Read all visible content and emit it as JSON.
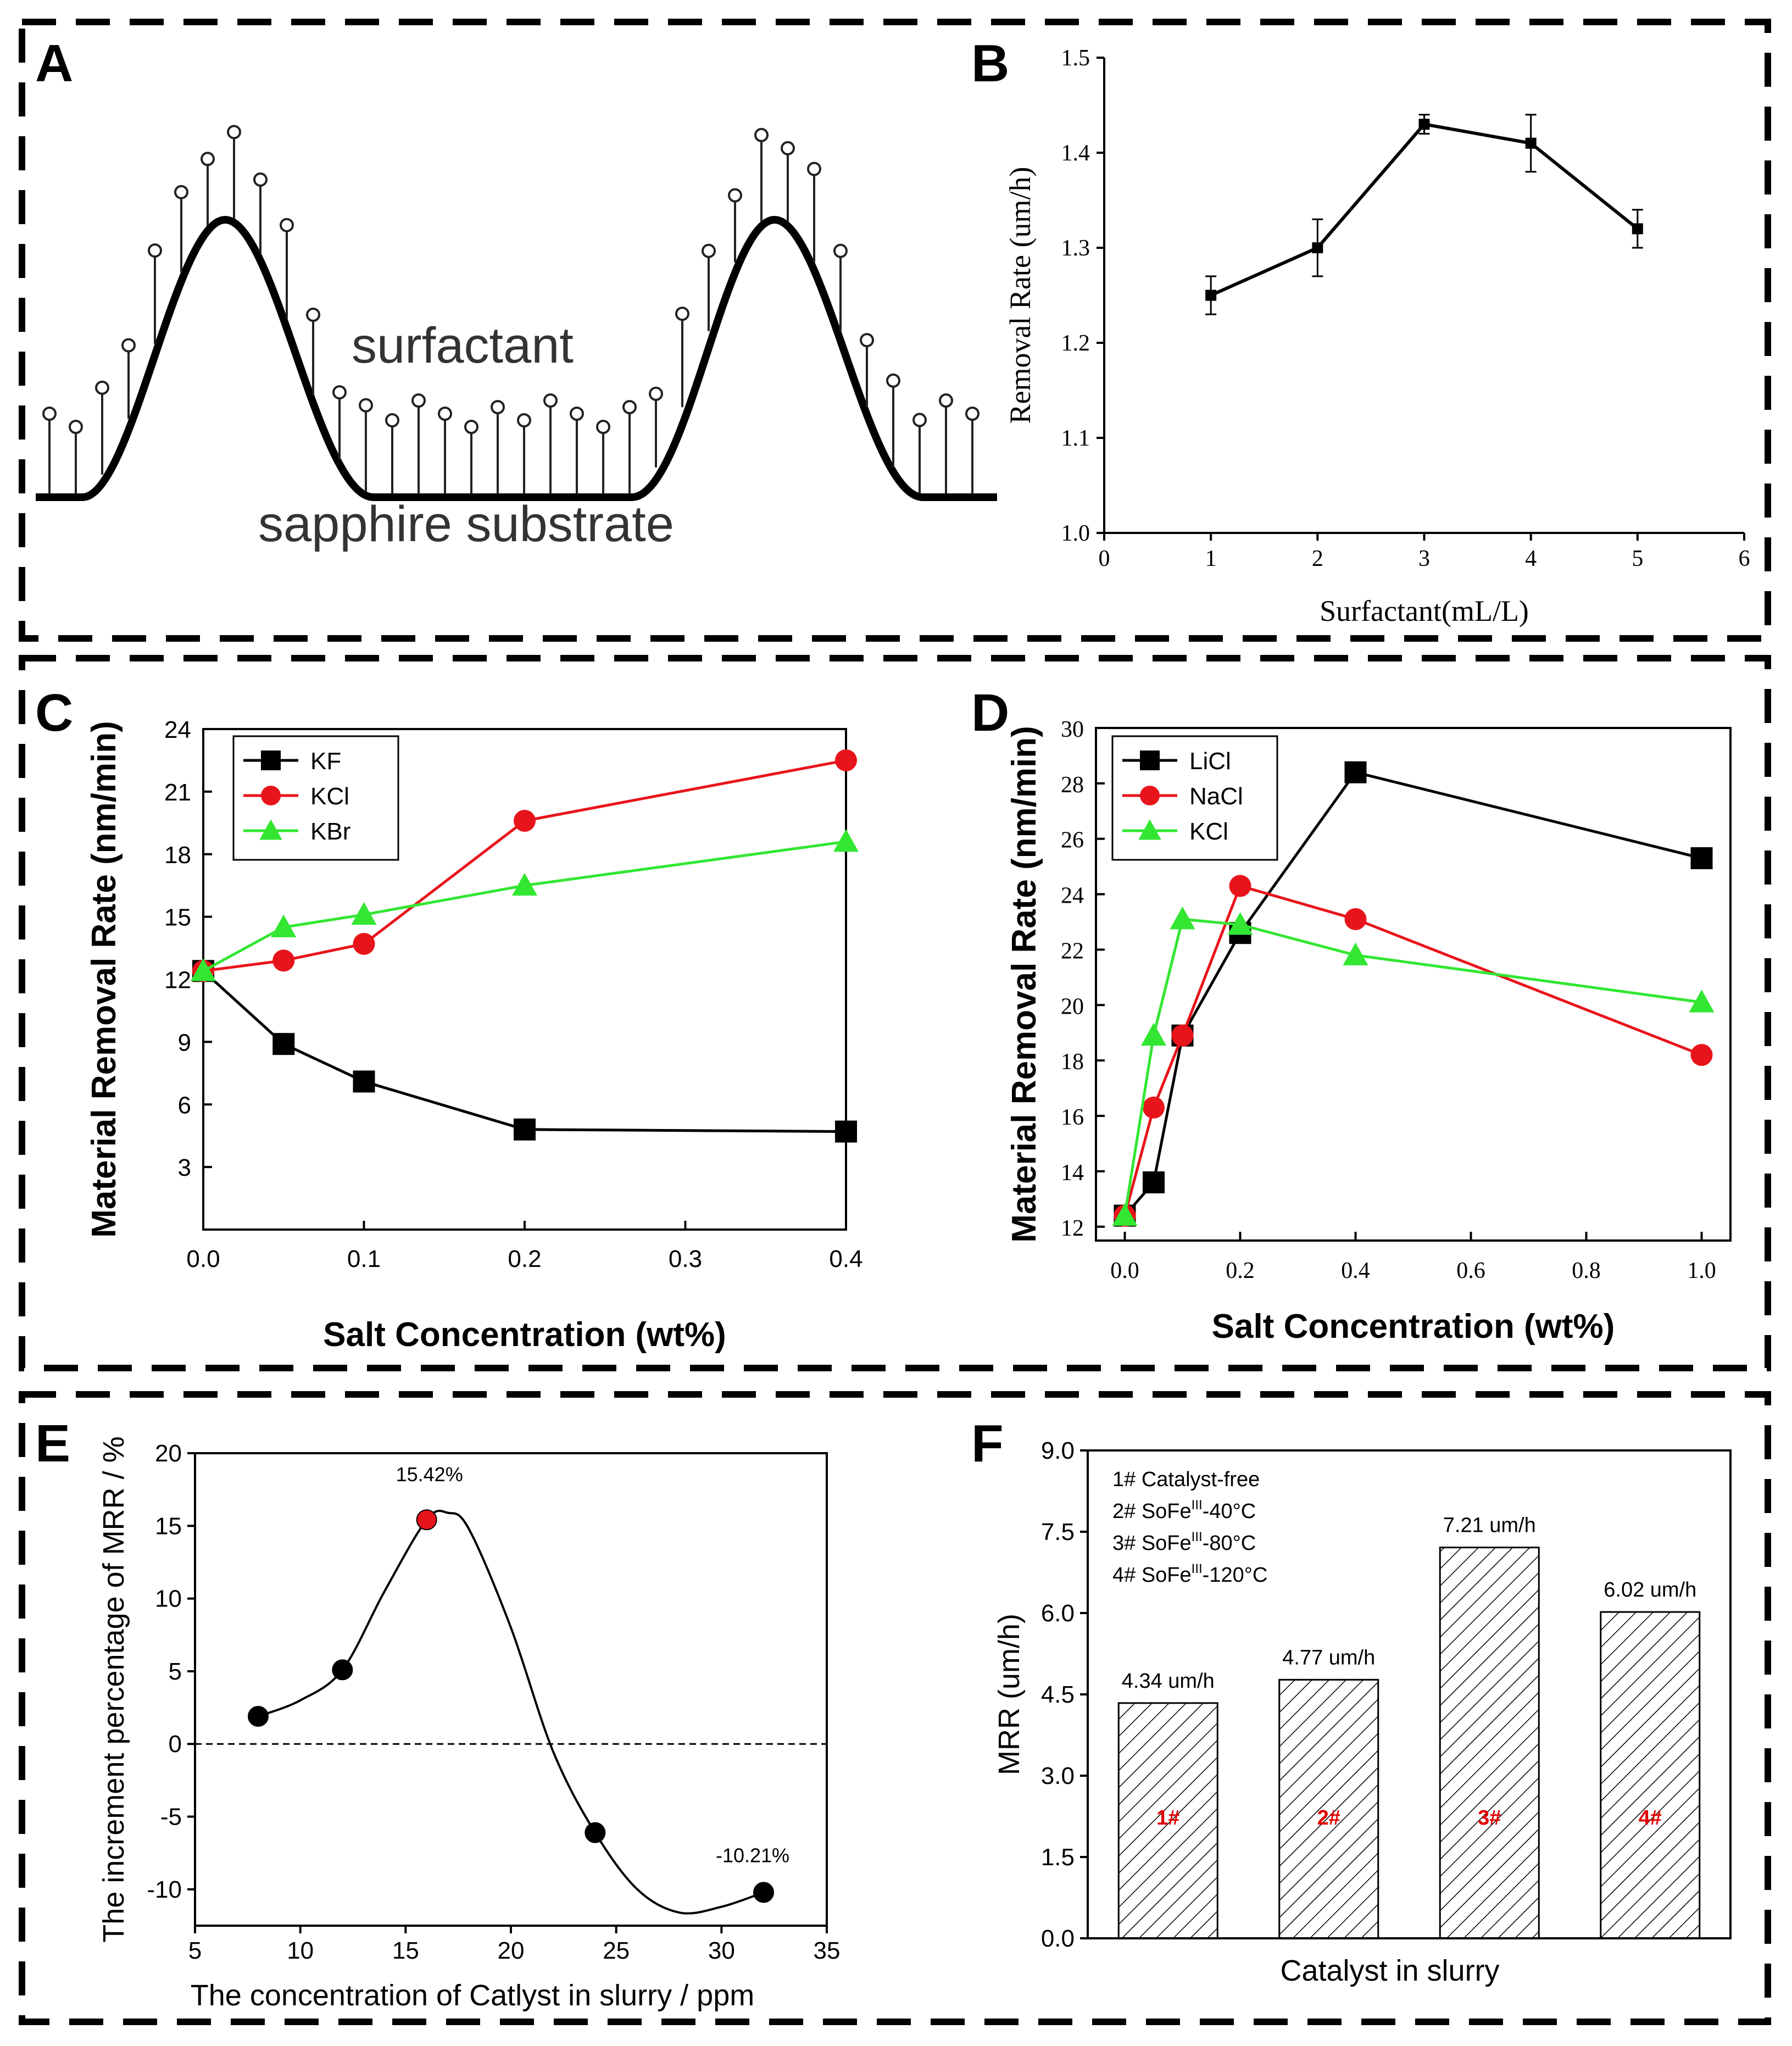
{
  "panels": {
    "A": {
      "letter": "A",
      "surfactant_label": "surfactant",
      "substrate_label": "sapphire substrate"
    },
    "B": {
      "letter": "B"
    },
    "C": {
      "letter": "C"
    },
    "D": {
      "letter": "D"
    },
    "E": {
      "letter": "E"
    },
    "F": {
      "letter": "F"
    }
  },
  "colors": {
    "black": "#000000",
    "red": "#e8141b",
    "green": "#32e632",
    "redlabel": "#e00000"
  },
  "chart_data": [
    {
      "id": "B",
      "type": "line",
      "title": "",
      "xlabel": "Surfactant(mL/L)",
      "ylabel": "Removal Rate (um/h)",
      "xlim": [
        0,
        6
      ],
      "ylim": [
        1.0,
        1.5
      ],
      "xticks": [
        "0",
        "1",
        "2",
        "3",
        "4",
        "5",
        "6"
      ],
      "yticks": [
        "1.0",
        "1.1",
        "1.2",
        "1.3",
        "1.4",
        "1.5"
      ],
      "series": [
        {
          "x": [
            1,
            2,
            3,
            4,
            5
          ],
          "y": [
            1.25,
            1.3,
            1.43,
            1.41,
            1.32
          ],
          "yerr": [
            0.02,
            0.03,
            0.01,
            0.03,
            0.02
          ],
          "marker": "square",
          "color": "#000000"
        }
      ]
    },
    {
      "id": "C",
      "type": "line",
      "title": "",
      "xlabel": "Salt Concentration (wt%)",
      "ylabel": "Material Removal Rate (nm/min)",
      "xlim": [
        0,
        0.4
      ],
      "ylim": [
        0,
        24
      ],
      "xticks": [
        "0.0",
        "0.1",
        "0.2",
        "0.3",
        "0.4"
      ],
      "yticks": [
        "3",
        "6",
        "9",
        "12",
        "15",
        "18",
        "21",
        "24"
      ],
      "legend_position": "top-left",
      "series": [
        {
          "name": "KF",
          "color": "#000000",
          "marker": "square",
          "x": [
            0,
            0.05,
            0.1,
            0.2,
            0.4
          ],
          "y": [
            12.4,
            8.9,
            7.1,
            4.8,
            4.7
          ]
        },
        {
          "name": "KCl",
          "color": "#e8141b",
          "marker": "circle",
          "x": [
            0,
            0.05,
            0.1,
            0.2,
            0.4
          ],
          "y": [
            12.4,
            12.9,
            13.7,
            19.6,
            22.5
          ]
        },
        {
          "name": "KBr",
          "color": "#32e632",
          "marker": "triangle",
          "x": [
            0,
            0.05,
            0.1,
            0.2,
            0.4
          ],
          "y": [
            12.4,
            14.5,
            15.1,
            16.5,
            18.6
          ]
        }
      ]
    },
    {
      "id": "D",
      "type": "line",
      "title": "",
      "xlabel": "Salt Concentration (wt%)",
      "ylabel": "Material Removal Rate (nm/min)",
      "xlim": [
        -0.05,
        1.05
      ],
      "ylim": [
        11.5,
        30
      ],
      "xticks": [
        "0.0",
        "0.2",
        "0.4",
        "0.6",
        "0.8",
        "1.0"
      ],
      "yticks": [
        "12",
        "14",
        "16",
        "18",
        "20",
        "22",
        "24",
        "26",
        "28",
        "30"
      ],
      "legend_position": "top-left",
      "series": [
        {
          "name": "LiCl",
          "color": "#000000",
          "marker": "square",
          "x": [
            0,
            0.05,
            0.1,
            0.2,
            0.4,
            1.0
          ],
          "y": [
            12.4,
            13.6,
            18.9,
            22.6,
            28.4,
            25.3
          ]
        },
        {
          "name": "NaCl",
          "color": "#e8141b",
          "marker": "circle",
          "x": [
            0,
            0.05,
            0.1,
            0.2,
            0.4,
            1.0
          ],
          "y": [
            12.4,
            16.3,
            18.9,
            24.3,
            23.1,
            18.2
          ]
        },
        {
          "name": "KCl",
          "color": "#32e632",
          "marker": "triangle",
          "x": [
            0,
            0.05,
            0.1,
            0.2,
            0.4,
            1.0
          ],
          "y": [
            12.4,
            18.9,
            23.1,
            22.9,
            21.8,
            20.1
          ]
        }
      ]
    },
    {
      "id": "E",
      "type": "scatter",
      "title": "",
      "xlabel": "The concentration of Catlyst in slurry / ppm",
      "ylabel": "The increment percentage of MRR / %",
      "xlim": [
        5,
        35
      ],
      "ylim": [
        -12.5,
        20
      ],
      "xticks": [
        "5",
        "10",
        "15",
        "20",
        "25",
        "30",
        "35"
      ],
      "yticks": [
        "-10",
        "-5",
        "0",
        "5",
        "10",
        "15",
        "20"
      ],
      "x": [
        8,
        12,
        16,
        24,
        32
      ],
      "y": [
        1.9,
        5.1,
        15.42,
        -6.1,
        -10.21
      ],
      "highlight_index": 2,
      "fit_curve": {
        "x": [
          8,
          10,
          12,
          14,
          16,
          17,
          18,
          20,
          22,
          24,
          26,
          28,
          30,
          32
        ],
        "y": [
          1.9,
          3.0,
          5.1,
          10.5,
          15.42,
          15.9,
          14.8,
          8.0,
          -0.5,
          -6.1,
          -10.0,
          -11.6,
          -11.2,
          -10.21
        ]
      },
      "annotations": [
        "15.42%",
        "-10.21%"
      ]
    },
    {
      "id": "F",
      "type": "bar",
      "title": "",
      "xlabel": "Catalyst in slurry",
      "ylabel": "MRR (um/h)",
      "ylim": [
        0,
        9
      ],
      "yticks": [
        "0.0",
        "1.5",
        "3.0",
        "4.5",
        "6.0",
        "7.5",
        "9.0"
      ],
      "categories": [
        "1#",
        "2#",
        "3#",
        "4#"
      ],
      "values": [
        4.34,
        4.77,
        7.21,
        6.02
      ],
      "value_labels": [
        "4.34 um/h",
        "4.77 um/h",
        "7.21 um/h",
        "6.02 um/h"
      ],
      "legend_lines": [
        {
          "prefix": "1# Catalyst-free",
          "sup": "",
          "suffix": ""
        },
        {
          "prefix": "2# SoFe",
          "sup": "III",
          "suffix": "-40°C"
        },
        {
          "prefix": "3# SoFe",
          "sup": "III",
          "suffix": "-80°C"
        },
        {
          "prefix": "4# SoFe",
          "sup": "III",
          "suffix": "-120°C"
        }
      ]
    }
  ]
}
